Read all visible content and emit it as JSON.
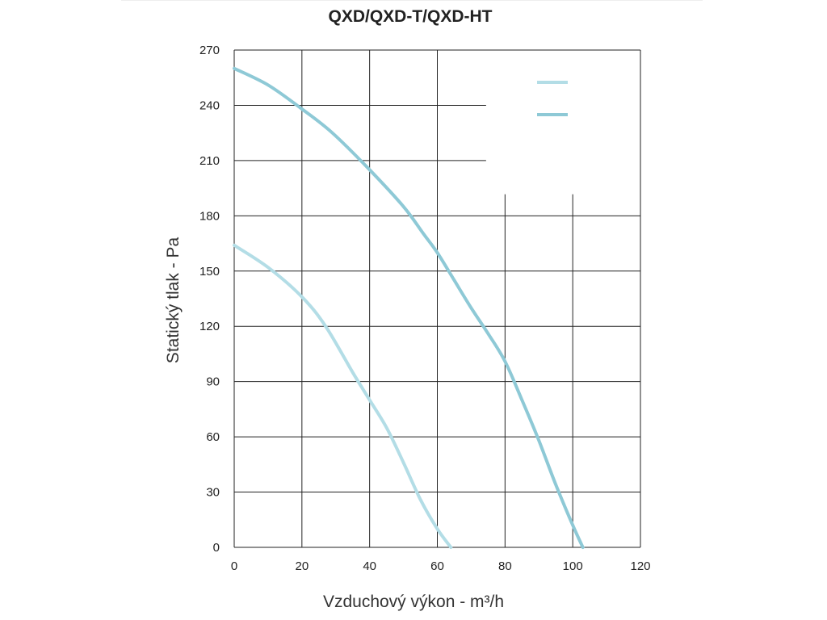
{
  "chart_data": {
    "type": "line",
    "title": "QXD/QXD-T/QXD-HT",
    "xlabel": "Vzduchový výkon - m³/h",
    "ylabel": "Statický tlak - Pa",
    "xlim": [
      0,
      120
    ],
    "ylim": [
      0,
      270
    ],
    "xticks": [
      "0",
      "20",
      "40",
      "60",
      "80",
      "100",
      "120"
    ],
    "yticks": [
      "0",
      "30",
      "60",
      "90",
      "120",
      "150",
      "180",
      "210",
      "240",
      "270"
    ],
    "grid": true,
    "legend": "top-right",
    "series": [
      {
        "color": "#b3dde6",
        "x": [
          0,
          10,
          20,
          27,
          35,
          40,
          45,
          50,
          55,
          60,
          64
        ],
        "y": [
          164,
          152,
          136,
          120,
          95,
          80,
          65,
          46,
          26,
          10,
          0
        ]
      },
      {
        "color": "#8ec9d6",
        "x": [
          0,
          10,
          20,
          29,
          40,
          50,
          56,
          60,
          65,
          70,
          75,
          80,
          85,
          90,
          95,
          100,
          103
        ],
        "y": [
          260,
          251,
          238,
          225,
          205,
          185,
          170,
          160,
          145,
          130,
          116,
          101,
          80,
          58,
          34,
          12,
          0
        ]
      }
    ]
  }
}
